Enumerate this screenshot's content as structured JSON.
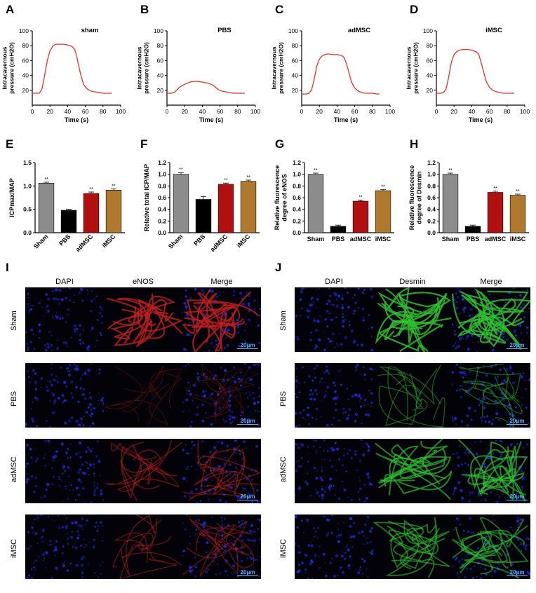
{
  "panels": {
    "A": "A",
    "B": "B",
    "C": "C",
    "D": "D",
    "E": "E",
    "F": "F",
    "G": "G",
    "H": "H",
    "I": "I",
    "J": "J"
  },
  "colors": {
    "trace": "#e5302a",
    "sham": "#8c8c8c",
    "pbs": "#000000",
    "admsc": "#b01010",
    "imsc": "#b07a2e",
    "dapi": "#1d2bd6",
    "enos": "#c42020",
    "desmin": "#2fc22f",
    "scale": "#4db3ff"
  },
  "chart_data": [
    {
      "type": "line",
      "panel": "A",
      "title": "sham",
      "xlabel": "Time (s)",
      "ylabel": "Intracavernous pressure (cmH2O)",
      "xlim": [
        0,
        100
      ],
      "ylim": [
        0,
        100
      ],
      "xticks": [
        "0",
        "20",
        "40",
        "60",
        "80",
        "100"
      ],
      "yticks": [
        "20",
        "40",
        "60",
        "80",
        "100"
      ],
      "x": [
        0,
        5,
        8,
        11,
        14,
        17,
        20,
        23,
        26,
        30,
        35,
        40,
        45,
        48,
        50,
        52,
        55,
        58,
        62,
        66,
        70,
        75,
        80,
        85,
        90
      ],
      "y": [
        16,
        16,
        16,
        22,
        40,
        60,
        73,
        79,
        82,
        82,
        82,
        81,
        79,
        75,
        67,
        56,
        40,
        28,
        22,
        19,
        18,
        17,
        16,
        16,
        16
      ]
    },
    {
      "type": "line",
      "panel": "B",
      "title": "PBS",
      "xlabel": "Time (s)",
      "ylabel": "Intracavernous pressure (cmH2O)",
      "xlim": [
        0,
        100
      ],
      "ylim": [
        0,
        100
      ],
      "xticks": [
        "0",
        "20",
        "40",
        "60",
        "80",
        "100"
      ],
      "yticks": [
        "20",
        "40",
        "60",
        "80",
        "100"
      ],
      "x": [
        0,
        5,
        8,
        11,
        14,
        18,
        22,
        26,
        30,
        35,
        40,
        45,
        48,
        52,
        55,
        58,
        62,
        66,
        70,
        75,
        80,
        85,
        88
      ],
      "y": [
        16,
        16,
        17,
        20,
        24,
        27,
        29,
        31,
        32,
        32,
        31,
        30,
        29,
        27,
        24,
        21,
        19,
        18,
        17,
        16,
        16,
        16,
        16
      ]
    },
    {
      "type": "line",
      "panel": "C",
      "title": "adMSC",
      "xlabel": "Time (s)",
      "ylabel": "Intracavernous pressure (cmH2O)",
      "xlim": [
        0,
        100
      ],
      "ylim": [
        0,
        100
      ],
      "xticks": [
        "0",
        "20",
        "40",
        "60",
        "80",
        "100"
      ],
      "yticks": [
        "20",
        "40",
        "60",
        "80",
        "100"
      ],
      "x": [
        0,
        5,
        8,
        11,
        14,
        17,
        20,
        23,
        26,
        30,
        35,
        40,
        45,
        48,
        50,
        53,
        56,
        60,
        64,
        68,
        72,
        76,
        80,
        85,
        88
      ],
      "y": [
        15,
        15,
        16,
        20,
        34,
        52,
        62,
        66,
        68,
        69,
        68,
        68,
        67,
        64,
        58,
        46,
        32,
        23,
        19,
        17,
        16,
        16,
        16,
        15,
        15
      ]
    },
    {
      "type": "line",
      "panel": "D",
      "title": "iMSC",
      "xlabel": "Time (s)",
      "ylabel": "Intracavernous pressure (cmH2O)",
      "xlim": [
        0,
        100
      ],
      "ylim": [
        0,
        100
      ],
      "xticks": [
        "0",
        "20",
        "40",
        "60",
        "80",
        "100"
      ],
      "yticks": [
        "20",
        "40",
        "60",
        "80",
        "100"
      ],
      "x": [
        0,
        5,
        8,
        11,
        14,
        17,
        20,
        23,
        26,
        30,
        35,
        40,
        45,
        48,
        50,
        53,
        56,
        60,
        64,
        68,
        72,
        76,
        80,
        85,
        88
      ],
      "y": [
        16,
        16,
        17,
        22,
        38,
        58,
        68,
        72,
        74,
        75,
        75,
        74,
        72,
        68,
        60,
        47,
        33,
        24,
        20,
        18,
        17,
        16,
        16,
        16,
        16
      ]
    },
    {
      "type": "bar",
      "panel": "E",
      "categories": [
        "Sham",
        "PBS",
        "adMSC",
        "iMSC"
      ],
      "values": [
        1.06,
        0.48,
        0.84,
        0.91
      ],
      "errors": [
        0.02,
        0.02,
        0.03,
        0.03
      ],
      "labels": [
        "**",
        "",
        "**",
        "**"
      ],
      "ylabel": "ICPmax/MAP",
      "ylim": [
        0,
        1.5
      ],
      "yticks": [
        "0.0",
        "0.5",
        "1.0",
        "1.5"
      ],
      "rotate": true
    },
    {
      "type": "bar",
      "panel": "F",
      "categories": [
        "Sham",
        "PBS",
        "adMSC",
        "iMSC"
      ],
      "values": [
        1.0,
        0.57,
        0.83,
        0.88
      ],
      "errors": [
        0.03,
        0.05,
        0.02,
        0.02
      ],
      "labels": [
        "**",
        "",
        "**",
        "**"
      ],
      "ylabel": "Relative total ICP/MAP",
      "ylim": [
        0,
        1.2
      ],
      "yticks": [
        "0.0",
        "0.2",
        "0.4",
        "0.6",
        "0.8",
        "1.0",
        "1.2"
      ],
      "rotate": true
    },
    {
      "type": "bar",
      "panel": "G",
      "categories": [
        "Sham",
        "PBS",
        "adMSC",
        "iMSC"
      ],
      "values": [
        1.0,
        0.11,
        0.54,
        0.72
      ],
      "errors": [
        0.02,
        0.02,
        0.02,
        0.02
      ],
      "labels": [
        "**",
        "",
        "**",
        "**"
      ],
      "ylabel": "Relative fluorescence degree of eNOS",
      "ylim": [
        0,
        1.2
      ],
      "yticks": [
        "0.0",
        "0.2",
        "0.4",
        "0.6",
        "0.8",
        "1.0",
        "1.2"
      ],
      "rotate": false
    },
    {
      "type": "bar",
      "panel": "H",
      "categories": [
        "Sham",
        "PBS",
        "adMSC",
        "iMSC"
      ],
      "values": [
        1.0,
        0.11,
        0.69,
        0.64
      ],
      "errors": [
        0.02,
        0.02,
        0.02,
        0.02
      ],
      "labels": [
        "**",
        "",
        "**",
        "**"
      ],
      "ylabel": "Relative fluorescence degree of Desmin",
      "ylim": [
        0,
        1.2
      ],
      "yticks": [
        "0.0",
        "0.2",
        "0.4",
        "0.6",
        "0.8",
        "1.0",
        "1.2"
      ],
      "rotate": false
    }
  ],
  "microscopy": {
    "I": {
      "columns": [
        "DAPI",
        "eNOS",
        "Merge"
      ],
      "marker_color": "#c42020",
      "rows": [
        "Sham",
        "PBS",
        "adMSC",
        "iMSC"
      ],
      "intensity": [
        0.9,
        0.12,
        0.45,
        0.4
      ],
      "scale": "20μm"
    },
    "J": {
      "columns": [
        "DAPI",
        "Desmin",
        "Merge"
      ],
      "marker_color": "#2fc22f",
      "rows": [
        "Sham",
        "PBS",
        "adMSC",
        "iMSC"
      ],
      "intensity": [
        0.95,
        0.35,
        0.75,
        0.6
      ],
      "scale": "20μm"
    }
  }
}
